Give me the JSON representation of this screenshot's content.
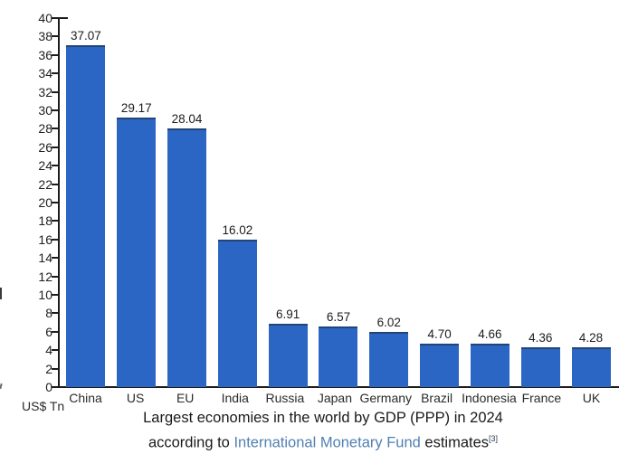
{
  "chart_data": {
    "type": "bar",
    "categories": [
      "China",
      "US",
      "EU",
      "India",
      "Russia",
      "Japan",
      "Germany",
      "Brazil",
      "Indonesia",
      "France",
      "UK"
    ],
    "values": [
      37.07,
      29.17,
      28.04,
      16.02,
      6.91,
      6.57,
      6.02,
      4.7,
      4.66,
      4.36,
      4.28
    ],
    "value_labels": [
      "37.07",
      "29.17",
      "28.04",
      "16.02",
      "6.91",
      "6.57",
      "6.02",
      "4.70",
      "4.66",
      "4.36",
      "4.28"
    ],
    "title": "Largest economies in the world by GDP (PPP) in 2024 according to International Monetary Fund estimates",
    "xlabel": "",
    "ylabel": "US$ Tn",
    "ylim": [
      0,
      40
    ],
    "yticks": [
      0,
      2,
      4,
      6,
      8,
      10,
      12,
      14,
      16,
      18,
      20,
      22,
      24,
      26,
      28,
      30,
      32,
      34,
      36,
      38,
      40
    ],
    "grid": false,
    "legend_position": "none",
    "bar_color": "#2B66C4",
    "axis_color": "#1c1c1c"
  },
  "axis": {
    "unit_label": "US$ Tn"
  },
  "caption": {
    "line1": "Largest economies in the world by GDP (PPP) in 2024",
    "line2_prefix": "according to ",
    "link_text": "International Monetary Fund",
    "line2_suffix": " estimates",
    "citation": "[3]",
    "link_color": "#5180B0"
  },
  "fragments": {
    "left_mid": "|",
    "left_lower": "'"
  }
}
